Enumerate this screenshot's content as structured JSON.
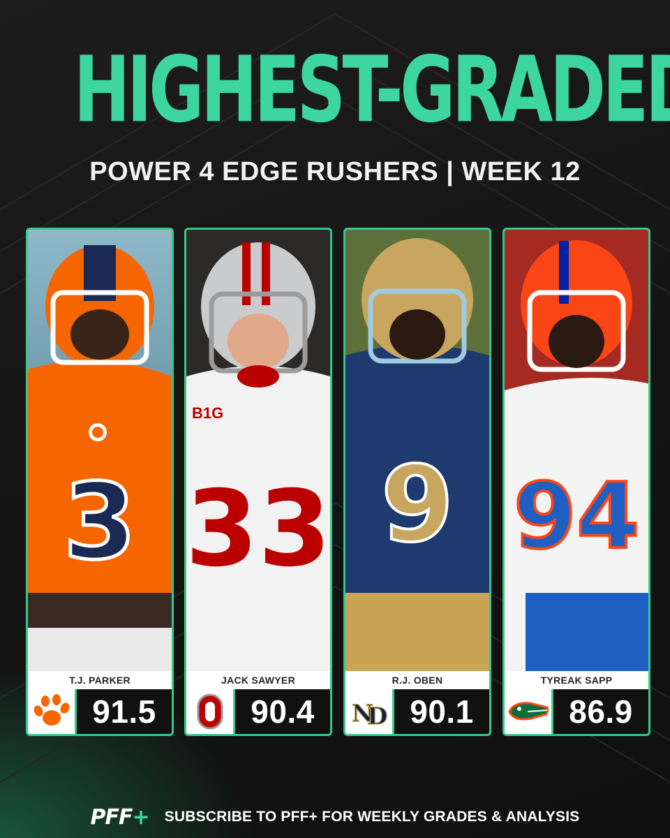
{
  "header": {
    "title": "HIGHEST-GRADED",
    "subtitle": "POWER 4 EDGE RUSHERS | WEEK 12"
  },
  "players": [
    {
      "name": "T.J. PARKER",
      "grade": "91.5",
      "jersey_number": "3",
      "team_logo_icon": "clemson-paw-icon",
      "accent_color": "#f56600"
    },
    {
      "name": "JACK SAWYER",
      "grade": "90.4",
      "jersey_number": "33",
      "team_logo_icon": "ohio-state-o-icon",
      "accent_color": "#bb0000"
    },
    {
      "name": "R.J. OBEN",
      "grade": "90.1",
      "jersey_number": "9",
      "team_logo_icon": "notre-dame-nd-icon",
      "accent_color": "#0c2340"
    },
    {
      "name": "TYREAK SAPP",
      "grade": "86.9",
      "jersey_number": "94",
      "team_logo_icon": "florida-gator-icon",
      "accent_color": "#0021a5"
    }
  ],
  "footer": {
    "logo": "PFF+",
    "text": "SUBSCRIBE TO PFF+ FOR WEEKLY GRADES & ANALYSIS"
  },
  "colors": {
    "accent": "#3dd6a0",
    "background": "#171717"
  }
}
